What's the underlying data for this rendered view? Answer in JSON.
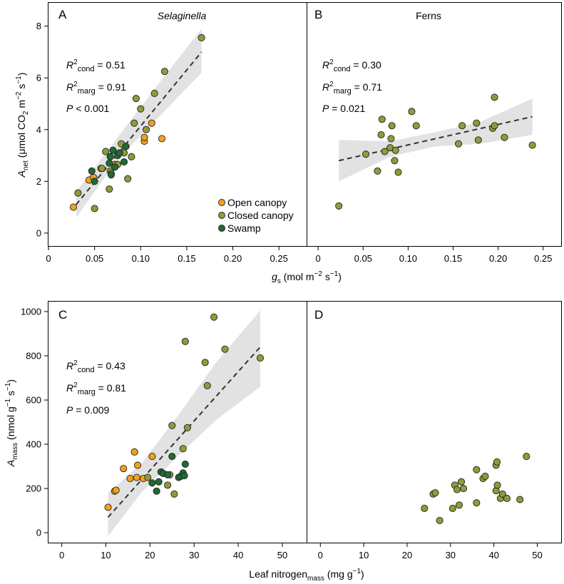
{
  "colors": {
    "open": "#f2a21a",
    "closed": "#8e9b3a",
    "swamp": "#1f6b35",
    "band": "#d6d6d6"
  },
  "legend": {
    "open": "Open canopy",
    "closed": "Closed canopy",
    "swamp": "Swamp"
  },
  "shared": {
    "top_xlabel": "g_s (mol m^-2 s^-1)",
    "bottom_xlabel": "Leaf nitrogen_mass (mg g^-1)",
    "top_ylabel": "A_net (μmol CO2 m^-2 s^-1)",
    "bottom_ylabel": "A_mass (nmol g^-1 s^-1)"
  },
  "chart_data": [
    {
      "id": "A",
      "type": "scatter",
      "title": "Selaginella",
      "xlabel": "g_s (mol m^-2 s^-1)",
      "ylabel": "A_net (μmol CO2 m^-2 s^-1)",
      "xlim": [
        0,
        0.28
      ],
      "ylim": [
        -0.5,
        8.9
      ],
      "xticks": [
        0,
        0.05,
        0.1,
        0.15,
        0.2,
        0.25
      ],
      "xticklabels": [
        "0",
        "0.05",
        "0.10",
        "0.15",
        "0.20",
        "0.25"
      ],
      "yticks": [
        0,
        2,
        4,
        6,
        8
      ],
      "stats": {
        "r2cond": "0.51",
        "r2marg": "0.91",
        "p_text": "< 0.001"
      },
      "fit": {
        "x": [
          0.03,
          0.166
        ],
        "y": [
          1.1,
          7.0
        ]
      },
      "band": {
        "x": [
          0.03,
          0.06,
          0.09,
          0.12,
          0.166
        ],
        "upper": [
          1.6,
          3.0,
          4.4,
          5.8,
          7.9
        ],
        "lower": [
          0.6,
          2.1,
          3.4,
          4.5,
          6.2
        ]
      },
      "series": [
        {
          "name": "Open canopy",
          "group": "open",
          "x": [
            0.027,
            0.044,
            0.049,
            0.057,
            0.072,
            0.104,
            0.104,
            0.112,
            0.123
          ],
          "y": [
            1.0,
            2.05,
            2.15,
            2.5,
            2.65,
            3.55,
            3.7,
            4.25,
            3.65
          ]
        },
        {
          "name": "Closed canopy",
          "group": "closed",
          "x": [
            0.032,
            0.05,
            0.058,
            0.062,
            0.066,
            0.067,
            0.068,
            0.075,
            0.079,
            0.082,
            0.086,
            0.09,
            0.093,
            0.095,
            0.1,
            0.106,
            0.115,
            0.126,
            0.166
          ],
          "y": [
            1.55,
            0.95,
            2.5,
            3.15,
            1.7,
            2.4,
            2.3,
            2.65,
            3.45,
            3.1,
            2.1,
            2.95,
            4.25,
            5.2,
            4.8,
            4.0,
            5.4,
            6.25,
            7.55
          ]
        },
        {
          "name": "Swamp",
          "group": "swamp",
          "x": [
            0.047,
            0.05,
            0.066,
            0.067,
            0.068,
            0.07,
            0.072,
            0.075,
            0.077,
            0.082,
            0.084
          ],
          "y": [
            2.4,
            2.0,
            2.7,
            2.95,
            2.25,
            3.2,
            2.55,
            3.0,
            3.1,
            2.75,
            3.35
          ]
        }
      ]
    },
    {
      "id": "B",
      "type": "scatter",
      "title": "Ferns",
      "xlabel": "g_s (mol m^-2 s^-1)",
      "ylabel": "",
      "xlim": [
        -0.012,
        0.27
      ],
      "ylim": [
        -0.5,
        8.9
      ],
      "xticks": [
        0,
        0.05,
        0.1,
        0.15,
        0.2,
        0.25
      ],
      "xticklabels": [
        "0",
        "0.05",
        "0.10",
        "0.15",
        "0.20",
        "0.25"
      ],
      "stats": {
        "r2cond": "0.30",
        "r2marg": "0.71",
        "p_text": "= 0.021"
      },
      "fit": {
        "x": [
          0.023,
          0.238
        ],
        "y": [
          2.8,
          4.5
        ]
      },
      "band": {
        "x": [
          0.023,
          0.08,
          0.13,
          0.18,
          0.238
        ],
        "upper": [
          3.6,
          3.55,
          3.9,
          4.3,
          5.2
        ],
        "lower": [
          2.0,
          2.95,
          3.35,
          3.45,
          3.8
        ]
      },
      "series": [
        {
          "name": "Closed canopy",
          "group": "closed",
          "x": [
            0.023,
            0.053,
            0.066,
            0.07,
            0.071,
            0.074,
            0.08,
            0.081,
            0.082,
            0.085,
            0.086,
            0.089,
            0.104,
            0.109,
            0.156,
            0.16,
            0.176,
            0.178,
            0.194,
            0.196,
            0.196,
            0.207,
            0.238
          ],
          "y": [
            1.05,
            3.05,
            2.4,
            3.8,
            4.4,
            3.15,
            3.3,
            3.65,
            4.15,
            2.8,
            3.2,
            2.35,
            4.7,
            4.15,
            3.45,
            4.15,
            4.25,
            3.6,
            4.05,
            4.15,
            5.25,
            3.7,
            3.4
          ]
        }
      ]
    },
    {
      "id": "C",
      "type": "scatter",
      "title": "",
      "xlabel": "Leaf nitrogen_mass (mg g^-1)",
      "ylabel": "A_mass (nmol g^-1 s^-1)",
      "xlim": [
        -3,
        55.5
      ],
      "ylim": [
        -45,
        1045
      ],
      "xticks": [
        0,
        10,
        20,
        30,
        40,
        50
      ],
      "xticklabels": [
        "0",
        "10",
        "20",
        "30",
        "40",
        "50"
      ],
      "yticks": [
        0,
        200,
        400,
        600,
        800,
        1000
      ],
      "stats": {
        "r2cond": "0.43",
        "r2marg": "0.81",
        "p_text": "= 0.009"
      },
      "fit": {
        "x": [
          10.5,
          45
        ],
        "y": [
          70,
          840
        ]
      },
      "band": {
        "x": [
          10.5,
          18,
          26,
          35,
          45
        ],
        "upper": [
          180,
          310,
          520,
          770,
          1005
        ],
        "lower": [
          -15,
          180,
          340,
          510,
          660
        ]
      },
      "series": [
        {
          "name": "Open canopy",
          "group": "open",
          "x": [
            10.5,
            12.0,
            12.3,
            14.0,
            15.5,
            16.5,
            17.0,
            17.2,
            18.5,
            20.5
          ],
          "y": [
            115,
            188,
            192,
            290,
            245,
            365,
            250,
            305,
            245,
            345
          ]
        },
        {
          "name": "Closed canopy",
          "group": "closed",
          "x": [
            19.5,
            24.0,
            24.5,
            25.0,
            25.5,
            27.5,
            28.0,
            28.5,
            32.5,
            33.0,
            34.5,
            37.0,
            45.0
          ],
          "y": [
            250,
            215,
            262,
            485,
            175,
            380,
            865,
            475,
            770,
            665,
            975,
            830,
            790
          ]
        },
        {
          "name": "Swamp",
          "group": "swamp",
          "x": [
            20.5,
            21.5,
            22.0,
            22.5,
            23.0,
            24.0,
            25.0,
            26.5,
            27.0,
            27.5,
            27.8,
            28.0
          ],
          "y": [
            225,
            188,
            230,
            275,
            268,
            262,
            345,
            250,
            255,
            270,
            258,
            310
          ]
        }
      ]
    },
    {
      "id": "D",
      "type": "scatter",
      "title": "",
      "xlabel": "Leaf nitrogen_mass (mg g^-1)",
      "ylabel": "",
      "xlim": [
        -3,
        55.5
      ],
      "ylim": [
        -45,
        1045
      ],
      "xticks": [
        0,
        10,
        20,
        30,
        40,
        50
      ],
      "xticklabels": [
        "0",
        "10",
        "20",
        "30",
        "40",
        "50"
      ],
      "stats": null,
      "fit": null,
      "band": null,
      "series": [
        {
          "name": "Closed canopy",
          "group": "closed",
          "x": [
            24.0,
            26.0,
            26.5,
            27.5,
            30.5,
            31.0,
            31.5,
            32.0,
            32.5,
            33.0,
            36.0,
            36.0,
            37.5,
            38.0,
            40.5,
            40.5,
            40.7,
            40.8,
            41.5,
            42.0,
            43.0,
            46.0,
            47.5
          ],
          "y": [
            110,
            175,
            180,
            55,
            110,
            215,
            195,
            125,
            230,
            200,
            285,
            135,
            245,
            255,
            190,
            305,
            320,
            215,
            155,
            175,
            155,
            150,
            345
          ]
        }
      ]
    }
  ]
}
